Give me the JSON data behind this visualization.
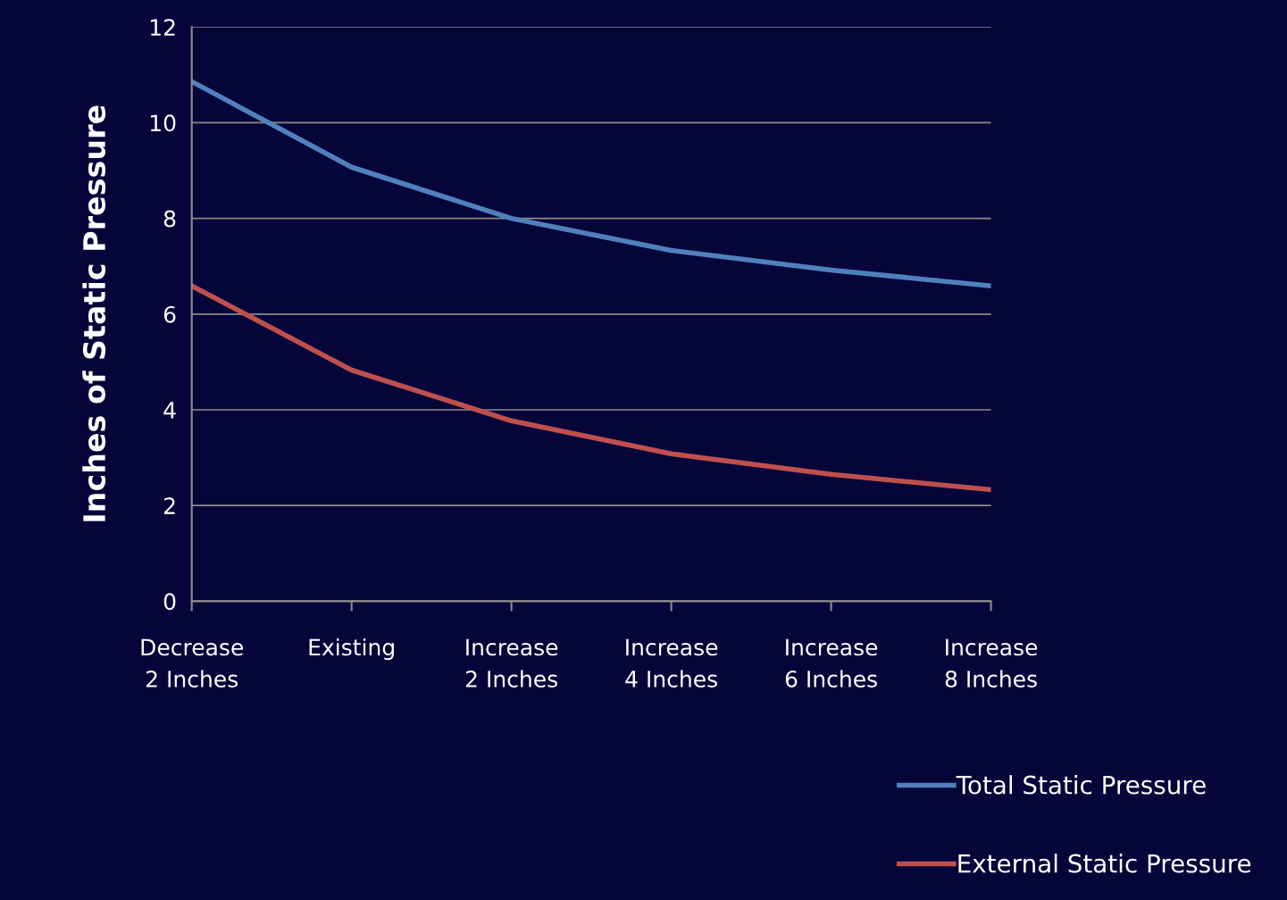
{
  "chart_data": {
    "type": "line",
    "ylabel": "Inches of Static Pressure",
    "categories": [
      "Decrease\n2 Inches",
      "Existing",
      "Increase\n2 Inches",
      "Increase\n4 Inches",
      "Increase\n6 Inches",
      "Increase\n8 Inches"
    ],
    "series": [
      {
        "name": "Total Static Pressure",
        "color": "#4f81bd",
        "values": [
          10.86,
          9.07,
          8.0,
          7.33,
          6.92,
          6.59
        ]
      },
      {
        "name": "External Static Pressure",
        "color": "#c0504d",
        "values": [
          6.59,
          4.83,
          3.77,
          3.08,
          2.65,
          2.33
        ]
      }
    ],
    "ylim": [
      0,
      12
    ],
    "yticks": [
      0,
      2,
      4,
      6,
      8,
      10,
      12
    ],
    "grid": "y",
    "legend": "bottom right",
    "marker": "none",
    "line_style": "solid"
  }
}
